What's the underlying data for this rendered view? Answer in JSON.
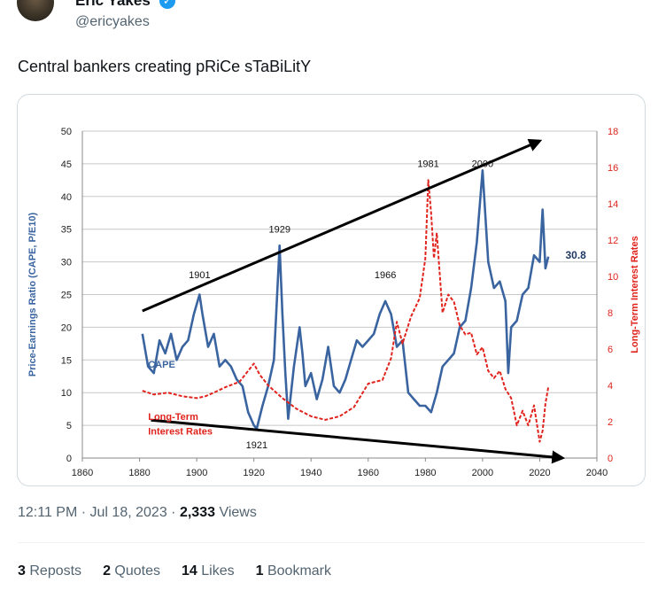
{
  "author": {
    "name": "Eric Yakes",
    "handle": "@ericyakes",
    "verified_icon": "verified-badge-icon",
    "more_icon": "more-options-icon"
  },
  "tweet": {
    "text": "Central bankers creating pRiCe sTaBiLitY"
  },
  "meta": {
    "time": "12:11 PM",
    "date": "Jul 18, 2023",
    "views_count": "2,333",
    "views_label": "Views",
    "sep": "·"
  },
  "stats": {
    "reposts": {
      "count": "3",
      "label": "Reposts"
    },
    "quotes": {
      "count": "2",
      "label": "Quotes"
    },
    "likes": {
      "count": "14",
      "label": "Likes"
    },
    "bookmarks": {
      "count": "1",
      "label": "Bookmark"
    }
  },
  "chart_data": {
    "type": "line",
    "xlim": [
      1860,
      2040
    ],
    "ylim": [
      0,
      50
    ],
    "ylim_right": [
      0,
      18
    ],
    "x_ticks": [
      "1860",
      "1880",
      "1900",
      "1920",
      "1940",
      "1960",
      "1980",
      "2000",
      "2020",
      "2040"
    ],
    "y_ticks": [
      "0",
      "5",
      "10",
      "15",
      "20",
      "25",
      "30",
      "35",
      "40",
      "45",
      "50"
    ],
    "y_ticks_right": [
      "0",
      "2",
      "4",
      "6",
      "8",
      "10",
      "12",
      "14",
      "16",
      "18"
    ],
    "ylabel": "Price-Earnings Ratio (CAPE, P/E10)",
    "ylabel_right": "Long-Term Interest Rates",
    "grid": true,
    "colors": {
      "cape": "#3a64a0",
      "rates": "#e0231c",
      "trend": "#000000"
    },
    "series": [
      {
        "name": "CAPE",
        "axis": "left",
        "x": [
          1881,
          1883,
          1885,
          1887,
          1889,
          1891,
          1893,
          1895,
          1897,
          1899,
          1901,
          1902,
          1904,
          1906,
          1908,
          1910,
          1912,
          1914,
          1916,
          1918,
          1920,
          1921,
          1923,
          1925,
          1927,
          1929,
          1930,
          1931,
          1932,
          1934,
          1936,
          1937,
          1938,
          1940,
          1942,
          1944,
          1946,
          1948,
          1950,
          1952,
          1954,
          1956,
          1958,
          1960,
          1962,
          1964,
          1966,
          1968,
          1970,
          1972,
          1974,
          1976,
          1978,
          1980,
          1982,
          1984,
          1986,
          1988,
          1990,
          1992,
          1994,
          1996,
          1998,
          2000,
          2002,
          2004,
          2006,
          2008,
          2009,
          2010,
          2012,
          2014,
          2016,
          2018,
          2020,
          2021,
          2022,
          2023
        ],
        "values": [
          19,
          14,
          13,
          18,
          16,
          19,
          15,
          17,
          18,
          22,
          25,
          22,
          17,
          19,
          14,
          15,
          14,
          12,
          11,
          7,
          5,
          4.5,
          8,
          11,
          15,
          32.5,
          22,
          13,
          6,
          14,
          20,
          16,
          11,
          13,
          9,
          12,
          17,
          11,
          10,
          12,
          15,
          18,
          17,
          18,
          19,
          22,
          24,
          22,
          17,
          18,
          10,
          9,
          8,
          8,
          7,
          10,
          14,
          15,
          16,
          20,
          21,
          26,
          33,
          44,
          30,
          26,
          27,
          24,
          13,
          20,
          21,
          25,
          26,
          31,
          30,
          38,
          29,
          30.8
        ]
      },
      {
        "name": "Long-Term Interest Rates",
        "axis": "right",
        "x": [
          1881,
          1885,
          1890,
          1895,
          1900,
          1903,
          1906,
          1910,
          1915,
          1918,
          1920,
          1922,
          1925,
          1930,
          1935,
          1940,
          1945,
          1950,
          1955,
          1960,
          1965,
          1968,
          1970,
          1972,
          1975,
          1978,
          1980,
          1981,
          1982,
          1983,
          1984,
          1986,
          1988,
          1990,
          1992,
          1994,
          1996,
          1998,
          2000,
          2002,
          2004,
          2006,
          2008,
          2010,
          2012,
          2014,
          2016,
          2018,
          2020,
          2021,
          2022,
          2023
        ],
        "values": [
          3.7,
          3.5,
          3.6,
          3.4,
          3.3,
          3.4,
          3.6,
          3.9,
          4.2,
          4.8,
          5.2,
          4.6,
          4.0,
          3.3,
          2.7,
          2.3,
          2.1,
          2.3,
          2.8,
          4.1,
          4.3,
          5.5,
          7.5,
          6.3,
          7.8,
          8.8,
          11,
          15.3,
          13.5,
          11,
          12.4,
          8.0,
          9.0,
          8.6,
          7.3,
          6.8,
          6.9,
          5.7,
          6.1,
          4.8,
          4.4,
          4.8,
          3.8,
          3.3,
          1.8,
          2.6,
          1.8,
          2.9,
          0.9,
          1.5,
          3.0,
          3.9
        ]
      }
    ],
    "annotations": [
      {
        "text": "1901",
        "x": 1901,
        "y": 27.5
      },
      {
        "text": "1929",
        "x": 1929,
        "y": 34.5
      },
      {
        "text": "1921",
        "x": 1921,
        "y": 1.5
      },
      {
        "text": "1966",
        "x": 1966,
        "y": 27.5
      },
      {
        "text": "1981",
        "x": 1981,
        "y": 44.5
      },
      {
        "text": "2000",
        "x": 2000,
        "y": 44.5
      },
      {
        "text": "30.8",
        "x": 2029,
        "y": 30.5
      },
      {
        "text": "CAPE",
        "x": 1883,
        "y": 13.8
      },
      {
        "text": "Long-Term",
        "x": 1883,
        "y": 5.8
      },
      {
        "text": "Interest Rates",
        "x": 1883,
        "y": 3.6
      }
    ],
    "trend_lines": [
      {
        "x1": 1881,
        "y1": 22.5,
        "x2": 2020,
        "y2": 48.5
      },
      {
        "x1": 1884,
        "y1": 5.8,
        "x2": 2028,
        "y2": 0
      }
    ]
  }
}
